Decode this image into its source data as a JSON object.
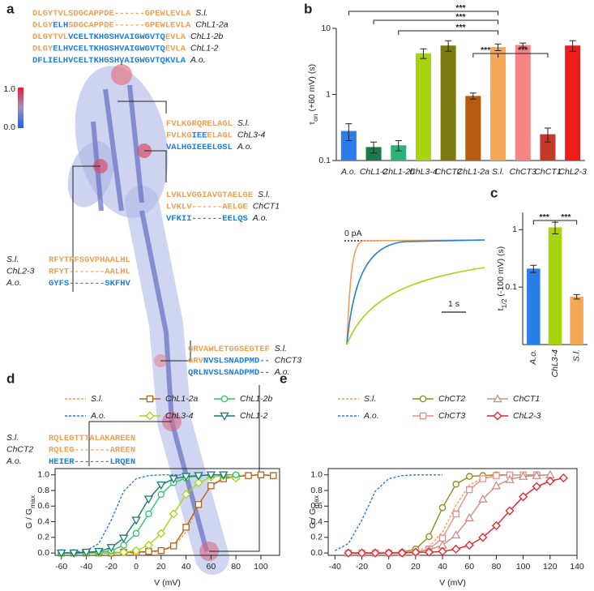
{
  "panel_a": {
    "label": "a",
    "colorbar": {
      "max": "1.0",
      "min": "0.0"
    },
    "alignments": [
      {
        "rows": [
          {
            "name": "S.l.",
            "segments": [
              {
                "text": "DLGYTVLSDGCAPPDE------GPEWLEVLA",
                "color": "#f0a050"
              }
            ]
          },
          {
            "name": "ChL1-2a",
            "segments": [
              {
                "text": "DLGY",
                "color": "#f0a050"
              },
              {
                "text": "ELH",
                "color": "#1f7fe0"
              },
              {
                "text": "SDGCAPPDE------GPEWLEVLA",
                "color": "#f0a050"
              }
            ]
          },
          {
            "name": "ChL1-2b",
            "segments": [
              {
                "text": "DLGYTVL",
                "color": "#f0a050"
              },
              {
                "text": "VCELTKHGSHVAIGWGVTQ",
                "color": "#1f7fe0"
              },
              {
                "text": "EVLA",
                "color": "#f0a050"
              }
            ]
          },
          {
            "name": "ChL1-2",
            "segments": [
              {
                "text": "DLGY",
                "color": "#f0a050"
              },
              {
                "text": "ELHVCELTKHGSHVAIGWGVTQ",
                "color": "#1f7fe0"
              },
              {
                "text": "EVLA",
                "color": "#f0a050"
              }
            ]
          },
          {
            "name": "A.o.",
            "segments": [
              {
                "text": "DFLIELHVCELTKHGSHVAIGWGVTQKVLA",
                "color": "#1f7fe0"
              }
            ]
          }
        ]
      },
      {
        "rows": [
          {
            "name": "S.l.",
            "segments": [
              {
                "text": "FVLKGRQRELAGL",
                "color": "#f0a050"
              }
            ]
          },
          {
            "name": "ChL3-4",
            "segments": [
              {
                "text": "FVLKG",
                "color": "#f0a050"
              },
              {
                "text": "IEE",
                "color": "#1f7fe0"
              },
              {
                "text": "ELAGL",
                "color": "#f0a050"
              }
            ]
          },
          {
            "name": "A.o.",
            "segments": [
              {
                "text": "VALHGIEEELGSL",
                "color": "#1f7fe0"
              }
            ]
          }
        ]
      },
      {
        "rows": [
          {
            "name": "S.l.",
            "segments": [
              {
                "text": "LVKLVGGIAVGTAELGE",
                "color": "#f0a050"
              }
            ]
          },
          {
            "name": "ChCT1",
            "segments": [
              {
                "text": "LVKLV------AELGE",
                "color": "#f0a050"
              }
            ]
          },
          {
            "name": "A.o.",
            "segments": [
              {
                "text": "VFKII------EELQS",
                "color": "#1f7fe0"
              }
            ]
          }
        ]
      },
      {
        "rows": [
          {
            "name": "S.l.",
            "segments": [
              {
                "text": "RFYTPFSGVPHAALHL",
                "color": "#f0a050"
              }
            ]
          },
          {
            "name": "ChL2-3",
            "segments": [
              {
                "text": "RFYT-------AALHL",
                "color": "#f0a050"
              }
            ]
          },
          {
            "name": "A.o.",
            "segments": [
              {
                "text": "GYFS-------SKFHV",
                "color": "#1f7fe0"
              }
            ]
          }
        ]
      },
      {
        "rows": [
          {
            "name": "S.l.",
            "segments": [
              {
                "text": "GRVAWLETGGSEGTEF",
                "color": "#f0a050"
              }
            ]
          },
          {
            "name": "ChCT3",
            "segments": [
              {
                "text": "GRV",
                "color": "#f0a050"
              },
              {
                "text": "NVSLSNADPMD--",
                "color": "#1f7fe0"
              }
            ]
          },
          {
            "name": "A.o.",
            "segments": [
              {
                "text": "QRLNVSLSNADPMD--",
                "color": "#1f7fe0"
              }
            ]
          }
        ]
      },
      {
        "rows": [
          {
            "name": "S.l.",
            "segments": [
              {
                "text": "RQLEGTTTALAKAREEN",
                "color": "#f0a050"
              }
            ]
          },
          {
            "name": "ChCT2",
            "segments": [
              {
                "text": "RQLEG-------AREEN",
                "color": "#f0a050"
              }
            ]
          },
          {
            "name": "A.o.",
            "segments": [
              {
                "text": "HEIER-------LRQEN",
                "color": "#1f7fe0"
              }
            ]
          }
        ]
      }
    ]
  },
  "panel_c_traces": {
    "zero_label": "0 pA",
    "scale_label": "1 s"
  },
  "chart_data": [
    {
      "type": "bar",
      "panel": "b",
      "log_y": true,
      "ylabel": {
        "main": "τ",
        "sub": "on",
        "rest": " (+60 mV) (s)"
      },
      "categories": [
        "A.o.",
        "ChL1-2",
        "ChL1-2b",
        "ChL3-4",
        "ChCT2",
        "ChL1-2a",
        "S.l.",
        "ChCT3",
        "ChCT1",
        "ChL2-3"
      ],
      "values": [
        0.28,
        0.16,
        0.17,
        4.2,
        5.5,
        0.95,
        5.2,
        5.6,
        0.25,
        5.5
      ],
      "errors": [
        0.08,
        0.03,
        0.03,
        0.7,
        1.0,
        0.1,
        0.6,
        0.4,
        0.06,
        1.0
      ],
      "colors": [
        "#2b7de9",
        "#1d7a48",
        "#2db37a",
        "#a6d40e",
        "#7d7a12",
        "#b85a10",
        "#f5a855",
        "#f58585",
        "#c0392b",
        "#ee1c1c"
      ],
      "ylim": [
        0.1,
        10
      ],
      "yticks": [
        0.1,
        1,
        10
      ],
      "annotations": [
        "***",
        "***",
        "***",
        "***",
        "***"
      ]
    },
    {
      "type": "bar",
      "panel": "c",
      "log_y": true,
      "ylabel": {
        "main": "t",
        "sub": "1/2",
        "rest": " (-100 mV) (s)"
      },
      "categories": [
        "A.o.",
        "ChL3-4",
        "S.l."
      ],
      "values": [
        0.21,
        1.1,
        0.068
      ],
      "errors": [
        0.03,
        0.25,
        0.006
      ],
      "colors": [
        "#2b7de9",
        "#a6d40e",
        "#f5a855"
      ],
      "ylim": [
        0.01,
        2
      ],
      "yticks": [
        0.1,
        1
      ],
      "annotations": [
        "***",
        "***"
      ]
    },
    {
      "type": "line",
      "panel": "d",
      "xlabel": "V (mV)",
      "ylabel": {
        "main": "G / G",
        "sub": "max"
      },
      "legend": "top",
      "xlim": [
        -65,
        115
      ],
      "xticks": [
        -60,
        -40,
        -20,
        0,
        20,
        40,
        60,
        80,
        100
      ],
      "ylim": [
        -0.03,
        1.08
      ],
      "yticks": [
        {
          "value": 0,
          "label": "0.0"
        },
        {
          "value": 0.2,
          "label": "0.2"
        },
        {
          "value": 0.4,
          "label": "0.4"
        },
        {
          "value": 0.6,
          "label": "0.6"
        },
        {
          "value": 0.8,
          "label": "0.8"
        },
        {
          "value": 1,
          "label": "1.0"
        }
      ],
      "series": [
        {
          "name": "S.l.",
          "color": "#f0a050",
          "marker": "none",
          "dashed": true,
          "x": [
            -60,
            -50,
            -40,
            -30,
            -20,
            -10,
            0,
            10,
            20,
            30,
            40,
            50,
            60,
            70,
            80,
            90,
            100,
            110
          ],
          "values": [
            0,
            0,
            0,
            0,
            0,
            0,
            0,
            0.01,
            0.02,
            0.08,
            0.27,
            0.61,
            0.87,
            0.96,
            0.99,
            1,
            1,
            1
          ]
        },
        {
          "name": "A.o.",
          "color": "#1f7fe0",
          "marker": "none",
          "dashed": true,
          "x": [
            -60,
            -50,
            -40,
            -30,
            -20,
            -10,
            0,
            10,
            20,
            30,
            40
          ],
          "values": [
            0,
            0.01,
            0.03,
            0.12,
            0.42,
            0.79,
            0.95,
            0.99,
            1,
            1,
            1
          ]
        },
        {
          "name": "ChL1-2a",
          "color": "#b5651d",
          "marker": "square",
          "dashed": false,
          "x": [
            -60,
            -50,
            -40,
            -30,
            -20,
            -10,
            0,
            10,
            20,
            30,
            40,
            50,
            60,
            70,
            80,
            90,
            100,
            110
          ],
          "values": [
            0,
            0,
            0,
            0,
            0,
            0.01,
            0.01,
            0.02,
            0.03,
            0.09,
            0.33,
            0.62,
            0.86,
            0.95,
            0.98,
            0.99,
            1,
            0.99
          ]
        },
        {
          "name": "ChL3-4",
          "color": "#a8d414",
          "marker": "diamond",
          "dashed": false,
          "x": [
            -60,
            -50,
            -40,
            -30,
            -20,
            -10,
            0,
            10,
            20,
            30,
            40,
            50,
            60,
            70,
            80
          ],
          "values": [
            0,
            0,
            0,
            0,
            0.01,
            0.01,
            0.03,
            0.1,
            0.25,
            0.5,
            0.75,
            0.9,
            0.97,
            0.99,
            0.96
          ]
        },
        {
          "name": "ChL1-2b",
          "color": "#2ec46a",
          "marker": "circle",
          "dashed": false,
          "x": [
            -60,
            -50,
            -40,
            -30,
            -20,
            -10,
            0,
            10,
            20,
            30,
            40,
            50,
            60,
            70,
            80
          ],
          "values": [
            0,
            0,
            0,
            0.01,
            0.03,
            0.1,
            0.25,
            0.5,
            0.75,
            0.9,
            0.96,
            0.99,
            1,
            1,
            1
          ]
        },
        {
          "name": "ChL1-2",
          "color": "#1a7a72",
          "marker": "triangle-down",
          "dashed": false,
          "x": [
            -60,
            -50,
            -40,
            -30,
            -20,
            -10,
            0,
            10,
            20,
            30,
            40,
            50,
            60,
            70
          ],
          "values": [
            0,
            0,
            0.01,
            0.02,
            0.07,
            0.19,
            0.42,
            0.69,
            0.87,
            0.95,
            0.98,
            0.99,
            1,
            1
          ]
        }
      ]
    },
    {
      "type": "line",
      "panel": "e",
      "xlabel": "V (mV)",
      "ylabel": {
        "main": "G / G",
        "sub": "max"
      },
      "legend": "top",
      "xlim": [
        -45,
        140
      ],
      "xticks": [
        -40,
        -20,
        0,
        20,
        40,
        60,
        80,
        100,
        120,
        140
      ],
      "ylim": [
        -0.03,
        1.08
      ],
      "yticks": [
        {
          "value": 0,
          "label": "0.0"
        },
        {
          "value": 0.2,
          "label": "0.2"
        },
        {
          "value": 0.4,
          "label": "0.4"
        },
        {
          "value": 0.6,
          "label": "0.6"
        },
        {
          "value": 0.8,
          "label": "0.8"
        },
        {
          "value": 1,
          "label": "1.0"
        }
      ],
      "series": [
        {
          "name": "S.l.",
          "color": "#f0a050",
          "marker": "none",
          "dashed": true,
          "x": [
            -30,
            -20,
            -10,
            0,
            10,
            20,
            30,
            40,
            50,
            60,
            70,
            80,
            90,
            100,
            110,
            120
          ],
          "values": [
            0,
            0,
            0,
            0,
            0.01,
            0.02,
            0.08,
            0.27,
            0.61,
            0.87,
            0.96,
            0.99,
            1,
            1,
            1,
            1
          ]
        },
        {
          "name": "A.o.",
          "color": "#1f7fe0",
          "marker": "none",
          "dashed": true,
          "x": [
            -40,
            -30,
            -20,
            -10,
            0,
            10,
            20,
            30,
            40
          ],
          "values": [
            0.03,
            0.12,
            0.42,
            0.79,
            0.95,
            0.99,
            1,
            1,
            1
          ]
        },
        {
          "name": "ChCT2",
          "color": "#8a8a1a",
          "marker": "circle",
          "dashed": false,
          "x": [
            -30,
            -20,
            -10,
            0,
            10,
            20,
            30,
            40,
            50,
            60,
            70,
            80,
            90,
            100,
            110
          ],
          "values": [
            0,
            0,
            0,
            0,
            0.01,
            0.05,
            0.21,
            0.58,
            0.88,
            0.98,
            0.99,
            1,
            1,
            1,
            1
          ]
        },
        {
          "name": "ChCT3",
          "color": "#f08a8a",
          "marker": "square",
          "dashed": false,
          "x": [
            -30,
            -20,
            -10,
            0,
            10,
            20,
            30,
            40,
            50,
            60,
            70,
            80,
            90,
            100,
            110
          ],
          "values": [
            0,
            0,
            0,
            0,
            0,
            0.01,
            0.05,
            0.19,
            0.5,
            0.81,
            0.95,
            0.99,
            1,
            1,
            1
          ]
        },
        {
          "name": "ChCT1",
          "color": "#c99080",
          "marker": "triangle-up",
          "dashed": false,
          "x": [
            -30,
            -20,
            -10,
            0,
            10,
            20,
            30,
            40,
            50,
            60,
            70,
            80,
            90,
            100,
            110,
            120
          ],
          "values": [
            0,
            0,
            0,
            0,
            0.01,
            0.01,
            0.04,
            0.1,
            0.23,
            0.45,
            0.69,
            0.86,
            0.94,
            0.98,
            0.99,
            1
          ]
        },
        {
          "name": "ChL2-3",
          "color": "#e8202a",
          "marker": "diamond",
          "dashed": false,
          "x": [
            -30,
            -20,
            -10,
            0,
            10,
            20,
            30,
            40,
            50,
            60,
            70,
            80,
            90,
            100,
            110,
            120,
            130
          ],
          "values": [
            0,
            0,
            0,
            0,
            0,
            0.01,
            0.01,
            0.02,
            0.05,
            0.1,
            0.2,
            0.35,
            0.54,
            0.72,
            0.85,
            0.92,
            0.96
          ]
        }
      ]
    }
  ]
}
